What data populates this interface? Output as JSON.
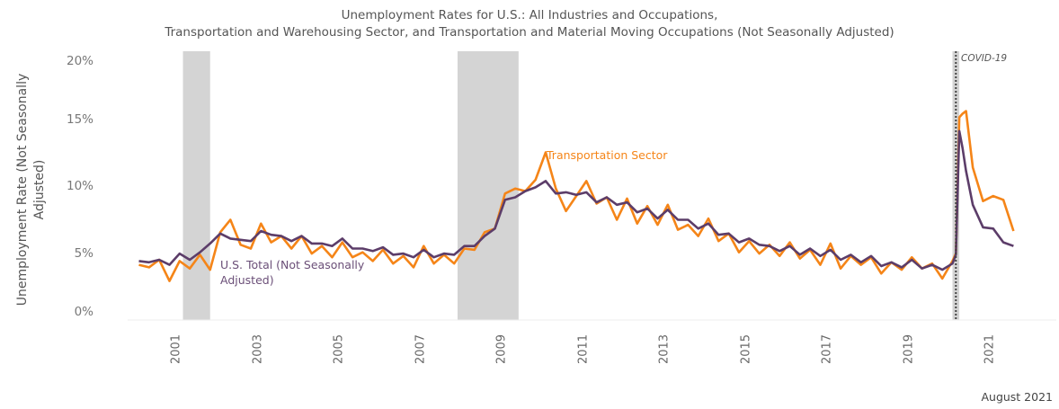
{
  "title_line1": "Unemployment Rates for U.S.: All Industries and Occupations,",
  "title_line2": "Transportation and Warehousing Sector, and Transportation and Material Moving Occupations (Not Seasonally Adjusted)",
  "footer_date": "August 2021",
  "colors": {
    "transportation": "#f58518",
    "us_total": "#5c3d69",
    "recession": "#d4d4d4"
  },
  "chart_data": {
    "type": "line",
    "ylabel": "Unemployment Rate (Not Seasonally Adjusted)",
    "ylim": [
      0,
      20
    ],
    "yticks": [
      "0%",
      "5%",
      "10%",
      "15%",
      "20%"
    ],
    "xticks": [
      "2001",
      "2003",
      "2005",
      "2007",
      "2009",
      "2011",
      "2013",
      "2015",
      "2017",
      "2019",
      "2021"
    ],
    "grid": false,
    "recessions": [
      [
        "2001-03",
        "2001-11"
      ],
      [
        "2007-12",
        "2009-06"
      ],
      [
        "2020-02",
        "2020-04"
      ]
    ],
    "annotations": {
      "covid": "COVID-19",
      "covid_date": "2020-03",
      "transportation_label": "Transportation Sector",
      "us_label": "U.S. Total (Not Seasonally Adjusted)"
    },
    "x": [
      "2000-02",
      "2000-05",
      "2000-08",
      "2000-11",
      "2001-02",
      "2001-05",
      "2001-08",
      "2001-11",
      "2002-02",
      "2002-05",
      "2002-08",
      "2002-11",
      "2003-02",
      "2003-05",
      "2003-08",
      "2003-11",
      "2004-02",
      "2004-05",
      "2004-08",
      "2004-11",
      "2005-02",
      "2005-05",
      "2005-08",
      "2005-11",
      "2006-02",
      "2006-05",
      "2006-08",
      "2006-11",
      "2007-02",
      "2007-05",
      "2007-08",
      "2007-11",
      "2008-02",
      "2008-05",
      "2008-08",
      "2008-11",
      "2009-02",
      "2009-05",
      "2009-08",
      "2009-11",
      "2010-02",
      "2010-05",
      "2010-08",
      "2010-11",
      "2011-02",
      "2011-05",
      "2011-08",
      "2011-11",
      "2012-02",
      "2012-05",
      "2012-08",
      "2012-11",
      "2013-02",
      "2013-05",
      "2013-08",
      "2013-11",
      "2014-02",
      "2014-05",
      "2014-08",
      "2014-11",
      "2015-02",
      "2015-05",
      "2015-08",
      "2015-11",
      "2016-02",
      "2016-05",
      "2016-08",
      "2016-11",
      "2017-02",
      "2017-05",
      "2017-08",
      "2017-11",
      "2018-02",
      "2018-05",
      "2018-08",
      "2018-11",
      "2019-02",
      "2019-05",
      "2019-08",
      "2019-11",
      "2020-02",
      "2020-03",
      "2020-04",
      "2020-05",
      "2020-06",
      "2020-08",
      "2020-11",
      "2021-02",
      "2021-05",
      "2021-08"
    ],
    "series": [
      {
        "name": "Transportation Sector",
        "values": [
          3.7,
          3.5,
          4.1,
          2.4,
          4.0,
          3.4,
          4.5,
          3.3,
          6.3,
          7.3,
          5.3,
          5.0,
          7.0,
          5.5,
          6.0,
          5.0,
          6.0,
          4.6,
          5.2,
          4.3,
          5.5,
          4.3,
          4.7,
          4.0,
          4.9,
          3.8,
          4.4,
          3.5,
          5.2,
          3.8,
          4.5,
          3.8,
          5.0,
          4.9,
          6.3,
          6.6,
          9.4,
          9.8,
          9.6,
          10.5,
          12.7,
          9.8,
          8.0,
          9.2,
          10.4,
          8.6,
          9.1,
          7.3,
          9.0,
          7.0,
          8.4,
          6.9,
          8.5,
          6.5,
          6.9,
          6.0,
          7.4,
          5.6,
          6.2,
          4.7,
          5.6,
          4.6,
          5.3,
          4.4,
          5.5,
          4.2,
          4.9,
          3.7,
          5.4,
          3.4,
          4.4,
          3.7,
          4.3,
          3.0,
          3.9,
          3.3,
          4.3,
          3.4,
          3.8,
          2.6,
          4.0,
          4.6,
          15.5,
          15.8,
          16.0,
          11.5,
          8.8,
          9.2,
          8.9,
          6.4
        ]
      },
      {
        "name": "U.S. Total (Not Seasonally Adjusted)",
        "values": [
          4.0,
          3.9,
          4.1,
          3.7,
          4.6,
          4.1,
          4.7,
          5.4,
          6.2,
          5.8,
          5.7,
          5.6,
          6.4,
          6.1,
          6.0,
          5.6,
          6.0,
          5.4,
          5.4,
          5.2,
          5.8,
          5.0,
          5.0,
          4.8,
          5.1,
          4.5,
          4.6,
          4.3,
          4.9,
          4.3,
          4.6,
          4.5,
          5.2,
          5.2,
          6.0,
          6.6,
          8.9,
          9.1,
          9.6,
          9.9,
          10.4,
          9.4,
          9.5,
          9.3,
          9.5,
          8.7,
          9.1,
          8.5,
          8.7,
          7.9,
          8.2,
          7.4,
          8.1,
          7.3,
          7.3,
          6.6,
          7.0,
          6.1,
          6.2,
          5.5,
          5.8,
          5.3,
          5.2,
          4.8,
          5.2,
          4.5,
          5.0,
          4.4,
          4.9,
          4.1,
          4.5,
          3.9,
          4.4,
          3.6,
          3.9,
          3.5,
          4.1,
          3.4,
          3.7,
          3.3,
          3.8,
          4.5,
          14.4,
          13.0,
          11.2,
          8.5,
          6.7,
          6.6,
          5.5,
          5.2
        ]
      }
    ]
  }
}
